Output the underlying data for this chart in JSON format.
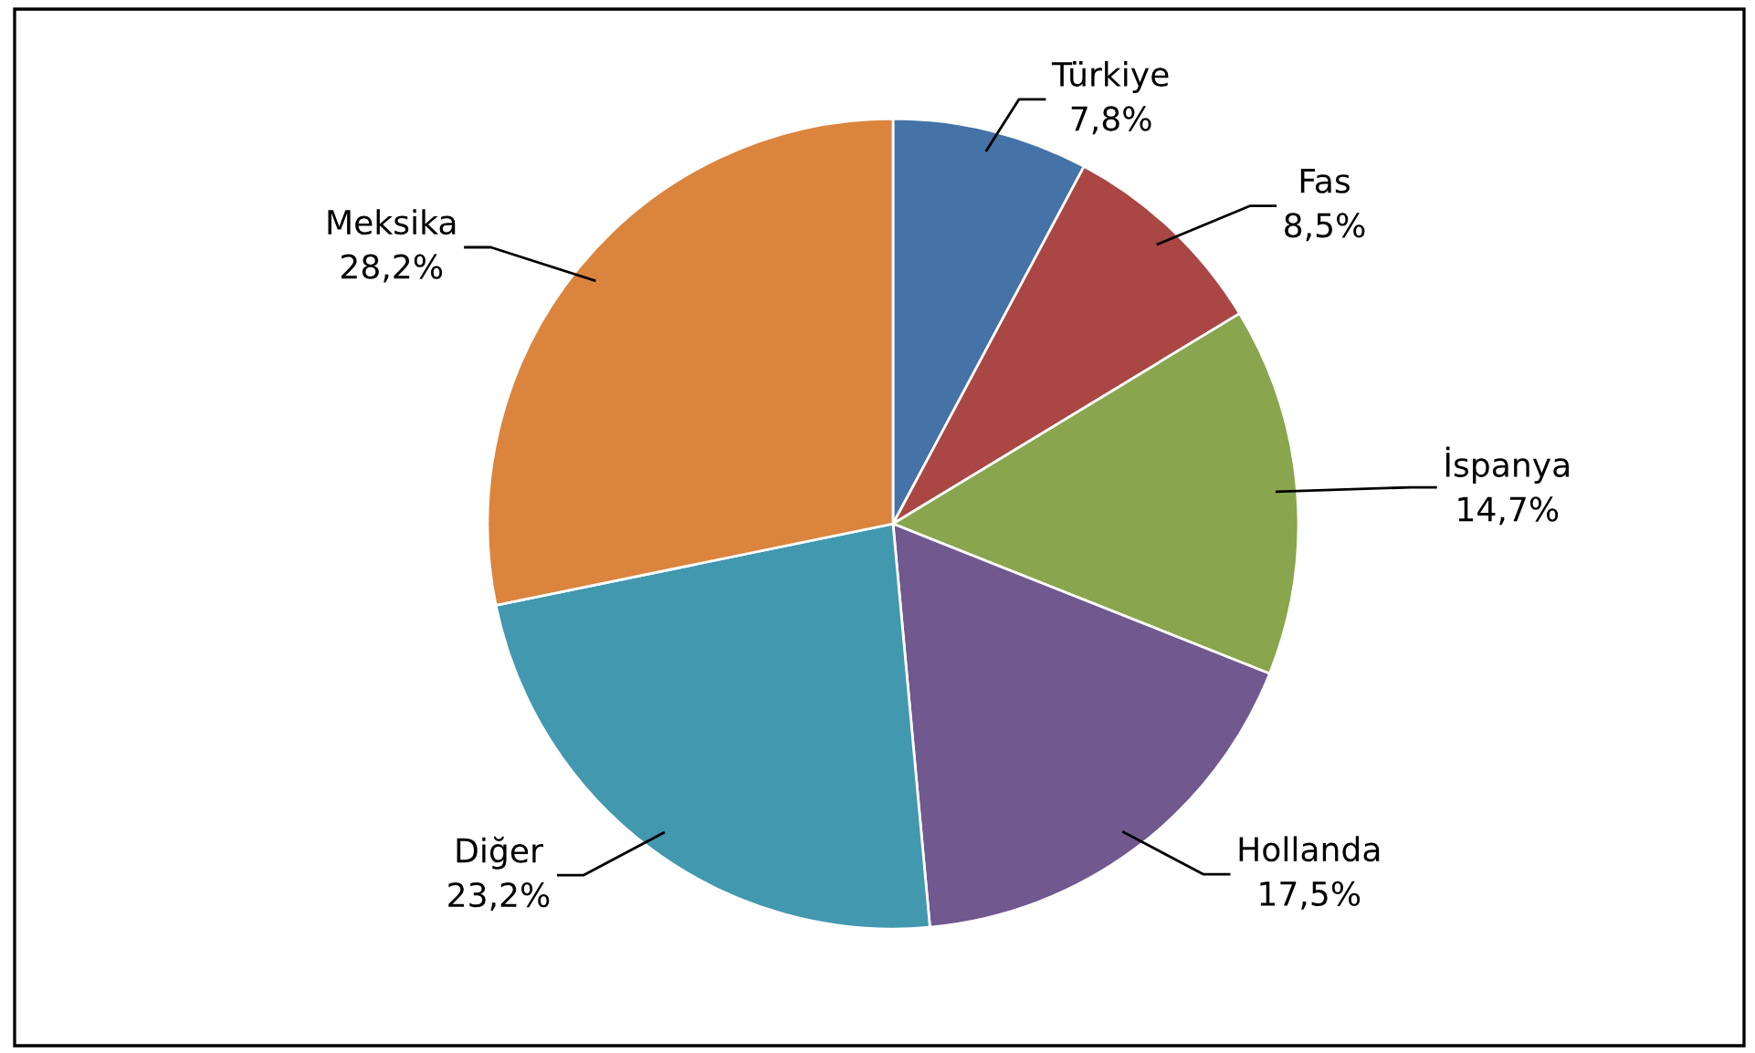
{
  "chart_data": {
    "type": "pie",
    "categories": [
      "Türkiye",
      "Fas",
      "İspanya",
      "Hollanda",
      "Diğer",
      "Meksika"
    ],
    "values": [
      7.8,
      8.5,
      14.7,
      17.5,
      23.2,
      28.2
    ],
    "value_labels": [
      "7,8%",
      "8,5%",
      "14,7%",
      "17,5%",
      "23,2%",
      "28,2%"
    ],
    "colors": [
      "#4572a7",
      "#aa4643",
      "#89a54e",
      "#71588f",
      "#4198af",
      "#db843d"
    ],
    "legend": false
  }
}
